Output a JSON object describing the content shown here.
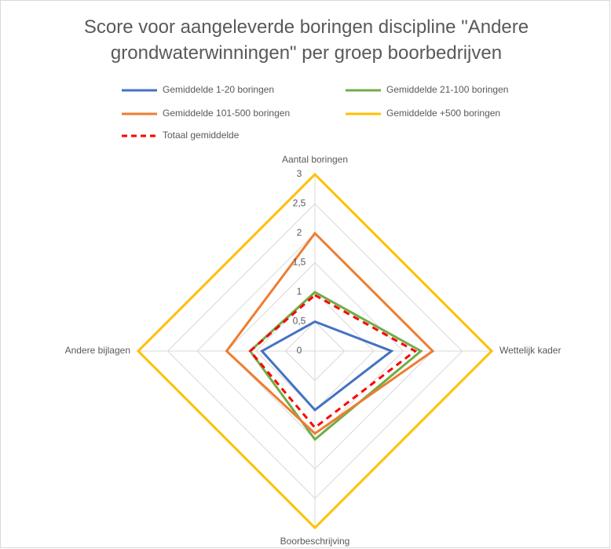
{
  "chart_data": {
    "type": "radar",
    "title": "Score voor aangeleverde boringen discipline \"Andere grondwaterwinningen\" per groep boorbedrijven",
    "categories": [
      "Aantal boringen",
      "Wettelijk kader",
      "Boorbeschrijving",
      "Andere bijlagen"
    ],
    "series": [
      {
        "name": "Gemiddelde 1-20 boringen",
        "color": "#4472c4",
        "values": [
          0.5,
          1.3,
          1.0,
          0.9
        ]
      },
      {
        "name": "Gemiddelde 21-100 boringen",
        "color": "#70ad47",
        "values": [
          1.0,
          1.8,
          1.5,
          1.1
        ]
      },
      {
        "name": "Gemiddelde 101-500 boringen",
        "color": "#ed7d31",
        "values": [
          2.0,
          2.0,
          1.4,
          1.5
        ]
      },
      {
        "name": "Gemiddelde +500 boringen",
        "color": "#ffc000",
        "values": [
          3,
          3,
          3,
          3
        ]
      },
      {
        "name": "Totaal gemiddelde",
        "color": "#ff0000",
        "dashed": true,
        "values": [
          0.95,
          1.7,
          1.3,
          1.1
        ]
      }
    ],
    "ylim": [
      0,
      3
    ],
    "yticks": [
      0,
      {
        "value": 0.5,
        "label": "0,5"
      },
      1,
      {
        "value": 1.5,
        "label": "1,5"
      },
      2,
      {
        "value": 2.5,
        "label": "2,5"
      },
      3
    ],
    "grid": true,
    "legend": "top"
  }
}
